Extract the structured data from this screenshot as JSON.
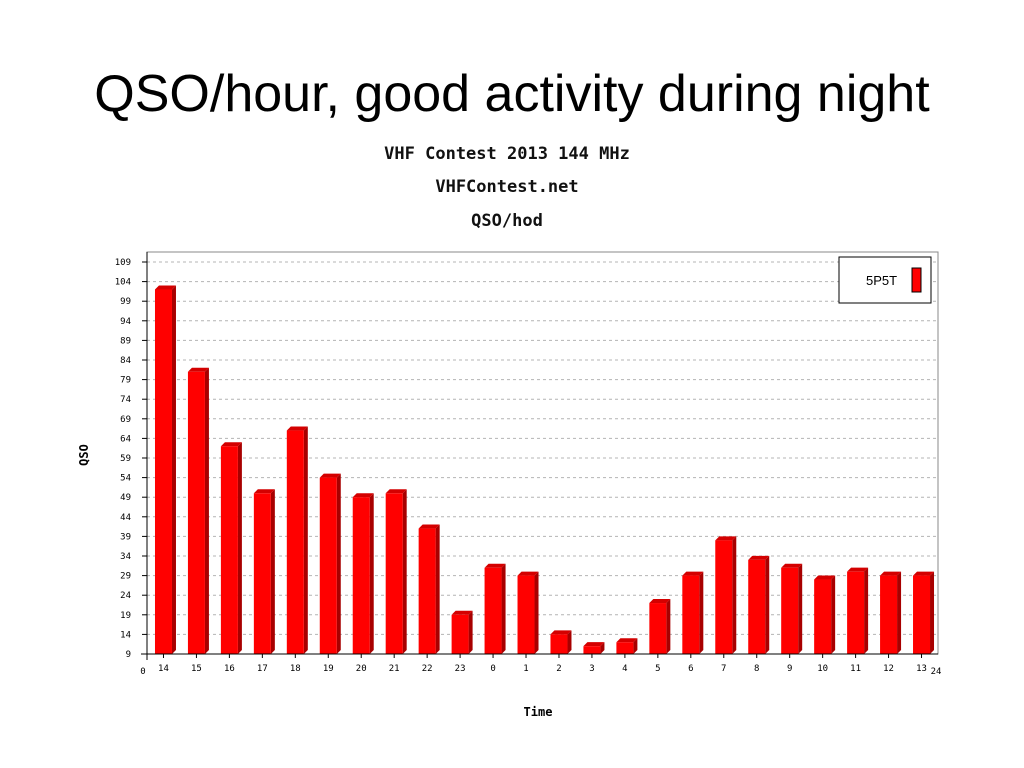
{
  "slide": {
    "title": "QSO/hour, good activity during night"
  },
  "colors": {
    "bar_face": "#ff0000",
    "bar_side": "#a80000",
    "bar_top": "#d40000",
    "grid": "#b4b4b4",
    "axis": "#000000"
  },
  "chart_data": {
    "type": "bar",
    "titles": [
      "VHF Contest 2013 144 MHz",
      "VHFContest.net",
      "QSO/hod"
    ],
    "xlabel": "Time",
    "ylabel": "QSO",
    "categories": [
      "14",
      "15",
      "16",
      "17",
      "18",
      "19",
      "20",
      "21",
      "22",
      "23",
      "0",
      "1",
      "2",
      "3",
      "4",
      "5",
      "6",
      "7",
      "8",
      "9",
      "10",
      "11",
      "12",
      "13"
    ],
    "x_axis_end_labels": [
      "0",
      "24"
    ],
    "series": [
      {
        "name": "5P5T",
        "values": [
          102,
          81,
          62,
          50,
          66,
          54,
          49,
          50,
          41,
          19,
          31,
          29,
          14,
          11,
          12,
          22,
          29,
          38,
          33,
          31,
          28,
          30,
          29,
          29
        ]
      }
    ],
    "y_ticks": [
      9,
      14,
      19,
      24,
      29,
      34,
      39,
      44,
      49,
      54,
      59,
      64,
      69,
      74,
      79,
      84,
      89,
      94,
      99,
      104,
      109
    ],
    "ylim": [
      9,
      109
    ],
    "grid": true,
    "legend_position": "top-right"
  }
}
